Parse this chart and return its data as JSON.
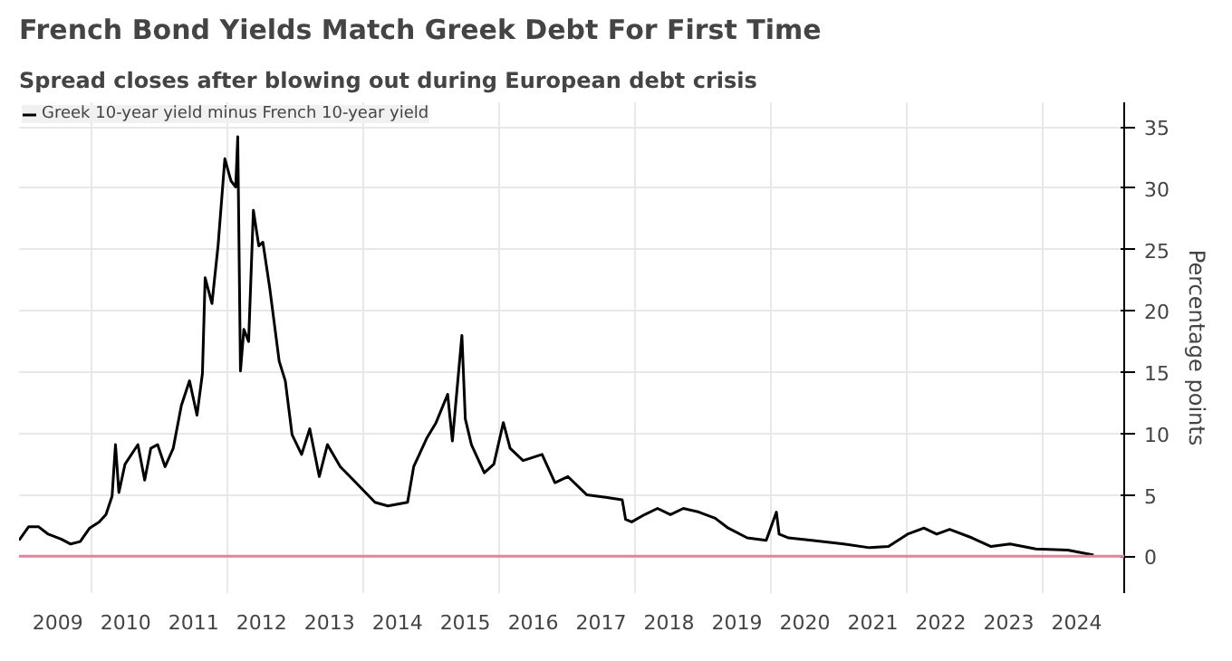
{
  "chart_data": {
    "type": "line",
    "title": "French Bond Yields Match Greek Debt For First Time",
    "subtitle": "Spread closes after blowing out during European debt crisis",
    "ylabel": "Percentage points",
    "x": [
      2008.93,
      2009.07,
      2009.22,
      2009.36,
      2009.55,
      2009.69,
      2009.83,
      2009.97,
      2010.11,
      2010.21,
      2010.3,
      2010.35,
      2010.4,
      2010.49,
      2010.68,
      2010.78,
      2010.87,
      2010.97,
      2011.08,
      2011.2,
      2011.32,
      2011.44,
      2011.55,
      2011.63,
      2011.67,
      2011.77,
      2011.86,
      2011.96,
      2012.05,
      2012.12,
      2012.15,
      2012.19,
      2012.24,
      2012.31,
      2012.38,
      2012.46,
      2012.52,
      2012.62,
      2012.76,
      2012.85,
      2012.95,
      2013.09,
      2013.21,
      2013.35,
      2013.47,
      2013.66,
      2013.89,
      2014.17,
      2014.36,
      2014.65,
      2014.74,
      2014.93,
      2015.07,
      2015.24,
      2015.31,
      2015.45,
      2015.5,
      2015.59,
      2015.78,
      2015.92,
      2016.06,
      2016.16,
      2016.35,
      2016.63,
      2016.82,
      2017.01,
      2017.29,
      2017.57,
      2017.81,
      2017.86,
      2017.95,
      2018.14,
      2018.33,
      2018.52,
      2018.71,
      2018.94,
      2019.18,
      2019.37,
      2019.65,
      2019.93,
      2020.08,
      2020.12,
      2020.26,
      2020.6,
      2021.07,
      2021.45,
      2021.73,
      2022.01,
      2022.25,
      2022.44,
      2022.63,
      2022.96,
      2023.24,
      2023.52,
      2023.9,
      2024.37,
      2024.75
    ],
    "series": [
      {
        "name": "Greek 10-year yield minus French 10-year yield",
        "color": "#000000",
        "values": [
          1.3,
          2.4,
          2.4,
          1.8,
          1.4,
          1.0,
          1.2,
          2.3,
          2.8,
          3.4,
          4.9,
          9.1,
          5.2,
          7.5,
          9.1,
          6.2,
          8.8,
          9.1,
          7.3,
          8.8,
          12.3,
          14.3,
          11.5,
          14.9,
          22.7,
          20.6,
          25.3,
          32.4,
          30.6,
          30.1,
          34.2,
          15.1,
          18.5,
          17.5,
          28.2,
          25.3,
          25.6,
          21.9,
          15.9,
          14.3,
          9.9,
          8.3,
          10.4,
          6.5,
          9.1,
          7.3,
          6.0,
          4.4,
          4.1,
          4.4,
          7.3,
          9.6,
          10.9,
          13.2,
          9.4,
          18.0,
          11.2,
          9.1,
          6.8,
          7.5,
          10.9,
          8.8,
          7.8,
          8.3,
          6.0,
          6.5,
          5.0,
          4.8,
          4.6,
          3.0,
          2.8,
          3.4,
          3.9,
          3.4,
          3.9,
          3.6,
          3.1,
          2.3,
          1.5,
          1.3,
          3.6,
          1.8,
          1.5,
          1.3,
          1.0,
          0.7,
          0.8,
          1.8,
          2.3,
          1.8,
          2.2,
          1.5,
          0.8,
          1.0,
          0.6,
          0.5,
          0.1
        ]
      }
    ],
    "xlim": [
      2008.93,
      2025.2
    ],
    "xticks": [
      {
        "value": 2009.5,
        "label": "2009"
      },
      {
        "value": 2010.5,
        "label": "2010"
      },
      {
        "value": 2011.5,
        "label": "2011"
      },
      {
        "value": 2012.5,
        "label": "2012"
      },
      {
        "value": 2013.5,
        "label": "2013"
      },
      {
        "value": 2014.5,
        "label": "2014"
      },
      {
        "value": 2015.5,
        "label": "2015"
      },
      {
        "value": 2016.5,
        "label": "2016"
      },
      {
        "value": 2017.5,
        "label": "2017"
      },
      {
        "value": 2018.5,
        "label": "2018"
      },
      {
        "value": 2019.5,
        "label": "2019"
      },
      {
        "value": 2020.5,
        "label": "2020"
      },
      {
        "value": 2021.5,
        "label": "2021"
      },
      {
        "value": 2022.5,
        "label": "2022"
      },
      {
        "value": 2023.5,
        "label": "2023"
      },
      {
        "value": 2024.5,
        "label": "2024"
      },
      {
        "value": 2010,
        "label": null
      },
      {
        "value": 2012,
        "label": null
      },
      {
        "value": 2014,
        "label": null
      },
      {
        "value": 2016,
        "label": null
      },
      {
        "value": 2018,
        "label": null
      },
      {
        "value": 2020,
        "label": null
      },
      {
        "value": 2022,
        "label": null
      },
      {
        "value": 2024,
        "label": null
      }
    ],
    "ylim": [
      -3,
      37
    ],
    "yticks": [
      0,
      5,
      10,
      15,
      20,
      25,
      30,
      35
    ],
    "ref_lines": [
      {
        "axis": "y",
        "value": 0,
        "color": "#e0879e"
      }
    ],
    "grid": true,
    "legend": "top left",
    "line_style": "solid"
  }
}
